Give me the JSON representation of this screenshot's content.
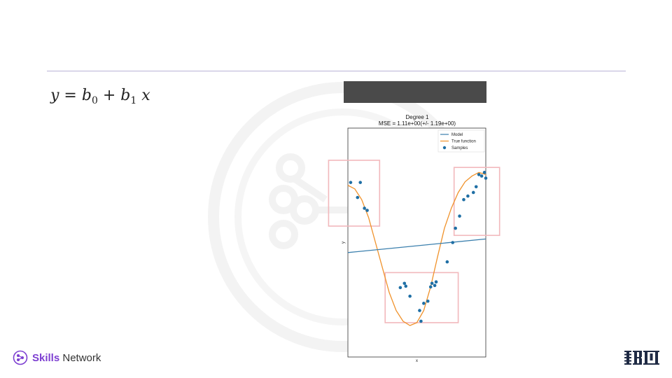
{
  "slide": {
    "equation": {
      "y": "y",
      "eq": " = ",
      "b0": "b",
      "b0_sub": "0",
      "plus": " + ",
      "b1": "b",
      "b1_sub": "1",
      "x": " x"
    }
  },
  "chart_data": {
    "type": "scatter",
    "title": "Degree 1",
    "subtitle": "MSE = 1.11e+00(+/- 1.19e+00)",
    "xlabel": "x",
    "ylabel": "y",
    "xlim": [
      0,
      1
    ],
    "ylim": [
      -1.6,
      1.6
    ],
    "legend_position": "top-right",
    "legend": [
      "Model",
      "True function",
      "Samples"
    ],
    "colors": {
      "model": "#3a7fad",
      "true_function": "#f0922b",
      "samples": "#1f6fa5",
      "highlight": "#f2b8bc"
    },
    "model_line": {
      "x": [
        0,
        1
      ],
      "y": [
        -0.14,
        0.05
      ]
    },
    "true_function": {
      "x": [
        0,
        0.05,
        0.1,
        0.15,
        0.2,
        0.25,
        0.3,
        0.35,
        0.4,
        0.45,
        0.5,
        0.55,
        0.6,
        0.65,
        0.7,
        0.75,
        0.8,
        0.85,
        0.9,
        0.95,
        1.0
      ],
      "y": [
        0.8,
        0.75,
        0.6,
        0.35,
        0.0,
        -0.35,
        -0.7,
        -0.95,
        -1.1,
        -1.16,
        -1.12,
        -0.95,
        -0.62,
        -0.2,
        0.2,
        0.48,
        0.7,
        0.85,
        0.93,
        0.98,
        0.95
      ]
    },
    "samples": {
      "x": [
        0.02,
        0.09,
        0.07,
        0.12,
        0.14,
        0.38,
        0.41,
        0.42,
        0.45,
        0.52,
        0.53,
        0.55,
        0.58,
        0.6,
        0.61,
        0.63,
        0.64,
        0.72,
        0.76,
        0.78,
        0.81,
        0.84,
        0.87,
        0.91,
        0.93,
        0.95,
        0.97,
        0.99,
        1.0
      ],
      "y": [
        0.84,
        0.84,
        0.63,
        0.48,
        0.45,
        -0.63,
        -0.57,
        -0.61,
        -0.75,
        -0.95,
        -1.1,
        -0.85,
        -0.82,
        -0.62,
        -0.57,
        -0.6,
        -0.55,
        -0.27,
        0.0,
        0.2,
        0.37,
        0.6,
        0.65,
        0.7,
        0.78,
        0.95,
        0.93,
        0.98,
        0.9
      ]
    },
    "highlight_regions": [
      {
        "x": [
          -0.14,
          0.23
        ],
        "y": [
          0.23,
          1.15
        ]
      },
      {
        "x": [
          0.27,
          0.8
        ],
        "y": [
          -1.12,
          -0.42
        ]
      },
      {
        "x": [
          0.77,
          1.1
        ],
        "y": [
          0.1,
          1.05
        ]
      }
    ]
  },
  "footer": {
    "brand_strong": "Skills",
    "brand_rest": " Network",
    "logo_icon": "skills-network-logo-icon",
    "ibm_icon": "ibm-logo-icon"
  }
}
